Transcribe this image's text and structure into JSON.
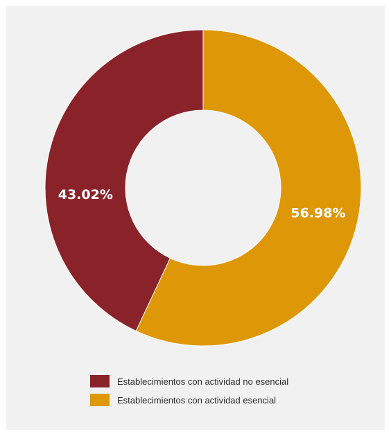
{
  "chart_data": {
    "type": "pie",
    "donut": true,
    "categories": [
      "Establecimientos con actividad no esencial",
      "Establecimientos con actividad esencial"
    ],
    "values": [
      43.02,
      56.98
    ],
    "labels": [
      "43.02%",
      "56.98%"
    ],
    "colors": [
      "#8a2229",
      "#dd9707"
    ],
    "legend_position": "bottom"
  },
  "legend": {
    "items": [
      {
        "label": "Establecimientos con actividad no esencial",
        "color": "#8a2229"
      },
      {
        "label": "Establecimientos con actividad esencial",
        "color": "#dd9707"
      }
    ]
  }
}
